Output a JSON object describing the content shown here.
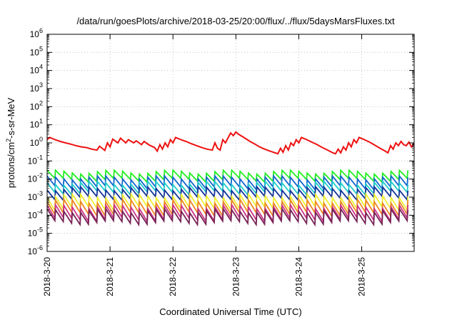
{
  "chart_data": {
    "type": "line",
    "title": "/data/run/goesPlots/archive/2018-03-25/20:00/flux/../flux/5daysMarsFluxes.txt",
    "xlabel": "Coordinated Universal Time (UTC)",
    "ylabel": "protons/cm²-s-sr-MeV",
    "ylabel_parts": {
      "pre": "protons/cm",
      "sup": "2",
      "post": "-s-sr-MeV"
    },
    "yscale": "log",
    "ylim": [
      1e-06,
      1000000.0
    ],
    "xlim": [
      "2018-03-20T00:00",
      "2018-03-25T20:00"
    ],
    "grid": true,
    "legend": "none",
    "y_ticks": [
      {
        "base": "10",
        "exp": "-6"
      },
      {
        "base": "10",
        "exp": "-5"
      },
      {
        "base": "10",
        "exp": "-4"
      },
      {
        "base": "10",
        "exp": "-3"
      },
      {
        "base": "10",
        "exp": "-2"
      },
      {
        "base": "10",
        "exp": "-1"
      },
      {
        "base": "10",
        "exp": "0"
      },
      {
        "base": "10",
        "exp": "1"
      },
      {
        "base": "10",
        "exp": "2"
      },
      {
        "base": "10",
        "exp": "3"
      },
      {
        "base": "10",
        "exp": "4"
      },
      {
        "base": "10",
        "exp": "5"
      },
      {
        "base": "10",
        "exp": "6"
      }
    ],
    "x_ticks": [
      "2018-3-20",
      "2018-3-21",
      "2018-3-22",
      "2018-3-23",
      "2018-3-24",
      "2018-3-25"
    ],
    "series": [
      {
        "color": "#ee1111",
        "points": [
          [
            "2018-03-20T00:00",
            1.5
          ],
          [
            "2018-03-20T01:00",
            2.0
          ],
          [
            "2018-03-20T03:00",
            1.5
          ],
          [
            "2018-03-20T05:00",
            1.2
          ],
          [
            "2018-03-20T07:00",
            1.0
          ],
          [
            "2018-03-20T09:00",
            0.85
          ],
          [
            "2018-03-20T11:00",
            0.7
          ],
          [
            "2018-03-20T13:00",
            0.6
          ],
          [
            "2018-03-20T15:00",
            0.55
          ],
          [
            "2018-03-20T17:00",
            0.45
          ],
          [
            "2018-03-20T19:00",
            0.4
          ],
          [
            "2018-03-20T20:00",
            0.65
          ],
          [
            "2018-03-20T21:00",
            0.5
          ],
          [
            "2018-03-20T22:00",
            0.38
          ],
          [
            "2018-03-20T23:00",
            1.0
          ],
          [
            "2018-03-21T00:00",
            0.6
          ],
          [
            "2018-03-21T01:00",
            1.6
          ],
          [
            "2018-03-21T03:00",
            1.0
          ],
          [
            "2018-03-21T04:00",
            1.8
          ],
          [
            "2018-03-21T06:00",
            1.0
          ],
          [
            "2018-03-21T07:00",
            1.5
          ],
          [
            "2018-03-21T09:00",
            1.0
          ],
          [
            "2018-03-21T10:00",
            1.3
          ],
          [
            "2018-03-21T12:00",
            0.8
          ],
          [
            "2018-03-21T13:00",
            1.2
          ],
          [
            "2018-03-21T15:00",
            0.75
          ],
          [
            "2018-03-21T17:00",
            0.55
          ],
          [
            "2018-03-21T18:00",
            0.35
          ],
          [
            "2018-03-21T19:00",
            0.8
          ],
          [
            "2018-03-21T20:00",
            0.45
          ],
          [
            "2018-03-21T21:00",
            1.0
          ],
          [
            "2018-03-21T22:00",
            0.6
          ],
          [
            "2018-03-21T23:00",
            1.5
          ],
          [
            "2018-03-22T00:00",
            1.0
          ],
          [
            "2018-03-22T01:00",
            2.0
          ],
          [
            "2018-03-22T03:00",
            1.5
          ],
          [
            "2018-03-22T05:00",
            1.2
          ],
          [
            "2018-03-22T07:00",
            0.9
          ],
          [
            "2018-03-22T09:00",
            0.7
          ],
          [
            "2018-03-22T11:00",
            0.55
          ],
          [
            "2018-03-22T13:00",
            0.45
          ],
          [
            "2018-03-22T15:00",
            0.4
          ],
          [
            "2018-03-22T16:00",
            1.0
          ],
          [
            "2018-03-22T17:00",
            0.5
          ],
          [
            "2018-03-22T18:00",
            0.4
          ],
          [
            "2018-03-22T19:00",
            1.5
          ],
          [
            "2018-03-22T20:00",
            1.0
          ],
          [
            "2018-03-22T22:00",
            3.5
          ],
          [
            "2018-03-22T23:00",
            2.5
          ],
          [
            "2018-03-23T00:00",
            4.0
          ],
          [
            "2018-03-23T01:00",
            3.0
          ],
          [
            "2018-03-23T03:00",
            2.0
          ],
          [
            "2018-03-23T05:00",
            1.3
          ],
          [
            "2018-03-23T07:00",
            0.9
          ],
          [
            "2018-03-23T09:00",
            0.6
          ],
          [
            "2018-03-23T11:00",
            0.45
          ],
          [
            "2018-03-23T13:00",
            0.35
          ],
          [
            "2018-03-23T15:00",
            0.28
          ],
          [
            "2018-03-23T16:00",
            0.25
          ],
          [
            "2018-03-23T17:00",
            0.5
          ],
          [
            "2018-03-23T18:00",
            0.3
          ],
          [
            "2018-03-23T19:00",
            0.7
          ],
          [
            "2018-03-23T20:00",
            0.4
          ],
          [
            "2018-03-23T21:00",
            1.0
          ],
          [
            "2018-03-23T22:00",
            0.7
          ],
          [
            "2018-03-23T23:00",
            1.5
          ],
          [
            "2018-03-24T00:00",
            1.0
          ],
          [
            "2018-03-24T01:00",
            2.0
          ],
          [
            "2018-03-24T03:00",
            1.5
          ],
          [
            "2018-03-24T05:00",
            1.1
          ],
          [
            "2018-03-24T07:00",
            0.8
          ],
          [
            "2018-03-24T09:00",
            0.55
          ],
          [
            "2018-03-24T11:00",
            0.4
          ],
          [
            "2018-03-24T13:00",
            0.28
          ],
          [
            "2018-03-24T14:00",
            0.25
          ],
          [
            "2018-03-24T15:00",
            0.45
          ],
          [
            "2018-03-24T16:00",
            0.28
          ],
          [
            "2018-03-24T17:00",
            0.6
          ],
          [
            "2018-03-24T18:00",
            0.4
          ],
          [
            "2018-03-24T19:00",
            1.0
          ],
          [
            "2018-03-24T20:00",
            0.6
          ],
          [
            "2018-03-24T21:00",
            1.5
          ],
          [
            "2018-03-24T22:00",
            1.0
          ],
          [
            "2018-03-24T23:00",
            2.0
          ],
          [
            "2018-03-25T01:00",
            1.5
          ],
          [
            "2018-03-25T03:00",
            1.1
          ],
          [
            "2018-03-25T05:00",
            0.75
          ],
          [
            "2018-03-25T07:00",
            0.5
          ],
          [
            "2018-03-25T09:00",
            0.35
          ],
          [
            "2018-03-25T10:00",
            0.28
          ],
          [
            "2018-03-25T11:00",
            0.7
          ],
          [
            "2018-03-25T12:00",
            0.45
          ],
          [
            "2018-03-25T13:00",
            1.0
          ],
          [
            "2018-03-25T14:00",
            0.7
          ],
          [
            "2018-03-25T15:00",
            1.2
          ],
          [
            "2018-03-25T16:00",
            0.8
          ],
          [
            "2018-03-25T17:00",
            0.7
          ],
          [
            "2018-03-25T18:00",
            1.1
          ],
          [
            "2018-03-25T19:00",
            0.6
          ],
          [
            "2018-03-25T20:00",
            0.9
          ]
        ]
      },
      {
        "color": "#22ee22",
        "sawtooth": {
          "period_hours": 3.2,
          "high": 0.025,
          "low": 0.009
        }
      },
      {
        "color": "#1166cc",
        "sawtooth": {
          "period_hours": 3.2,
          "high": 0.012,
          "low": 0.0035
        }
      },
      {
        "color": "#22cccc",
        "sawtooth": {
          "period_hours": 3.2,
          "high": 0.006,
          "low": 0.0018
        }
      },
      {
        "color": "#113399",
        "sawtooth": {
          "period_hours": 3.2,
          "high": 0.003,
          "low": 0.0009
        }
      },
      {
        "color": "#f0f033",
        "sawtooth": {
          "period_hours": 3.2,
          "high": 0.0012,
          "low": 0.00025
        }
      },
      {
        "color": "#ee8822",
        "sawtooth": {
          "period_hours": 3.2,
          "high": 0.0006,
          "low": 0.00012
        }
      },
      {
        "color": "#cc3388",
        "sawtooth": {
          "period_hours": 3.2,
          "high": 0.0003,
          "low": 6e-05
        }
      },
      {
        "color": "#772255",
        "sawtooth": {
          "period_hours": 3.2,
          "high": 0.00018,
          "low": 4e-05
        }
      }
    ]
  }
}
